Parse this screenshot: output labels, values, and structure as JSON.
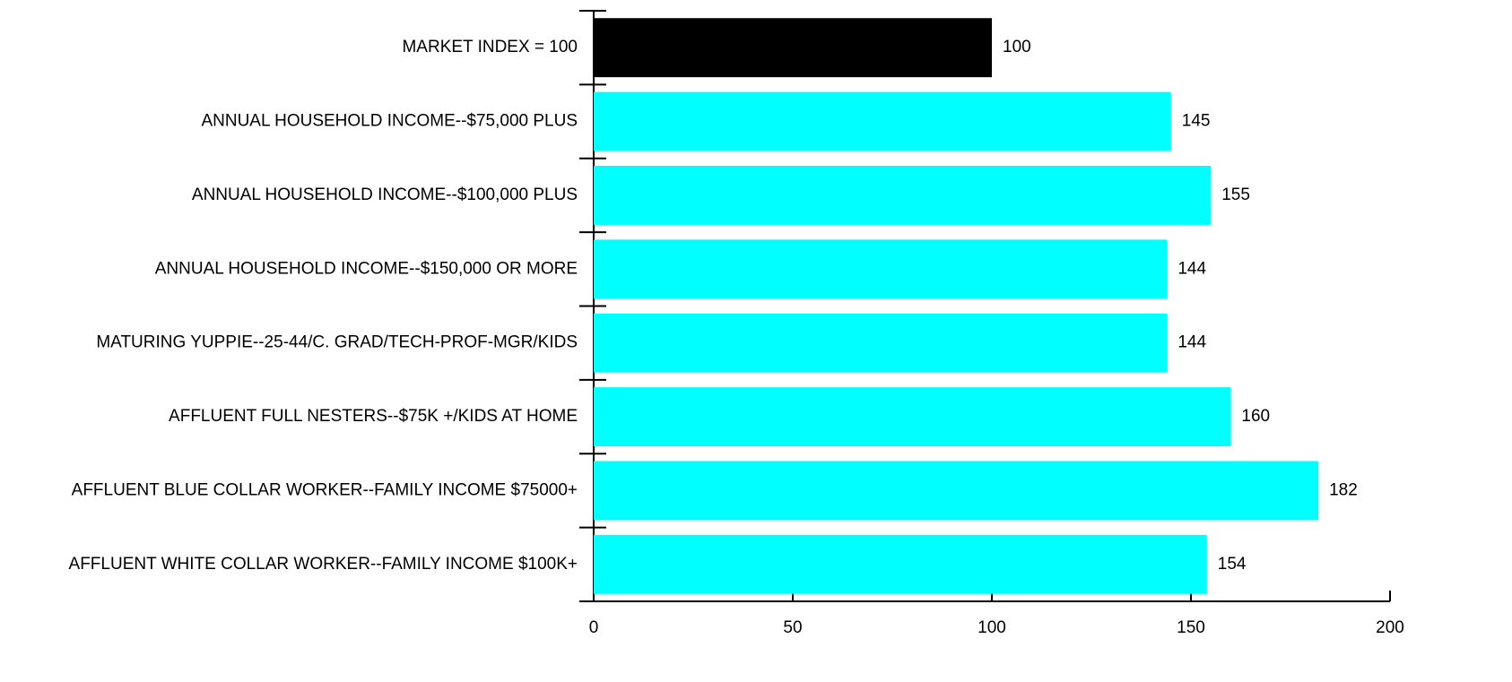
{
  "chart_data": {
    "type": "bar",
    "orientation": "horizontal",
    "categories": [
      "MARKET INDEX = 100",
      "ANNUAL HOUSEHOLD INCOME--$75,000 PLUS",
      "ANNUAL HOUSEHOLD INCOME--$100,000 PLUS",
      "ANNUAL HOUSEHOLD INCOME--$150,000 OR MORE",
      "MATURING YUPPIE--25-44/C. GRAD/TECH-PROF-MGR/KIDS",
      "AFFLUENT FULL NESTERS--$75K +/KIDS AT HOME",
      "AFFLUENT BLUE COLLAR WORKER--FAMILY INCOME $75000+",
      "AFFLUENT WHITE COLLAR WORKER--FAMILY INCOME $100K+"
    ],
    "values": [
      100,
      145,
      155,
      144,
      144,
      160,
      182,
      154
    ],
    "colors": [
      "#000000",
      "#00ffff",
      "#00ffff",
      "#00ffff",
      "#00ffff",
      "#00ffff",
      "#00ffff",
      "#00ffff"
    ],
    "xlim": [
      0,
      200
    ],
    "xticks": [
      0,
      50,
      100,
      150,
      200
    ]
  }
}
